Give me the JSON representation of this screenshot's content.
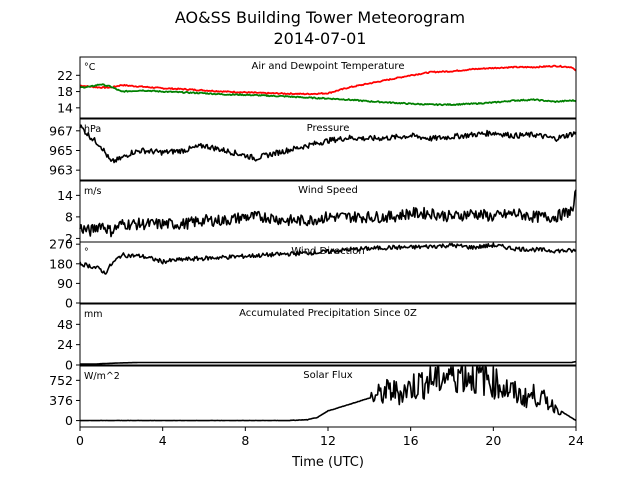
{
  "title": "AO&SS Building Tower Meteorogram",
  "subtitle": "2014-07-01",
  "xlabel": "Time (UTC)",
  "x_ticks": [
    0,
    4,
    8,
    12,
    16,
    20,
    24
  ],
  "chart_data": [
    {
      "type": "line",
      "panel_title": "Air and Dewpoint Temperature",
      "unit": "°C",
      "ylim": [
        11.5,
        26.5
      ],
      "y_ticks": [
        14,
        18,
        22
      ],
      "series": [
        {
          "color": "#ff0000",
          "x": [
            0,
            0.5,
            1,
            1.5,
            2,
            3,
            4,
            5,
            6,
            7,
            8,
            9,
            10,
            11,
            12,
            13,
            14,
            15,
            16,
            17,
            18,
            19,
            20,
            21,
            22,
            23,
            23.8,
            24
          ],
          "y": [
            19.5,
            19.2,
            19,
            19,
            19.6,
            19.2,
            18.8,
            18.6,
            18.3,
            18,
            17.8,
            17.6,
            17.5,
            17.4,
            17.6,
            19,
            20,
            21,
            22,
            22.8,
            23,
            23.5,
            23.8,
            24,
            24,
            24.3,
            24,
            23
          ]
        },
        {
          "color": "#008000",
          "x": [
            0,
            0.5,
            1,
            1.5,
            2,
            3,
            4,
            5,
            6,
            7,
            8,
            9,
            10,
            11,
            12,
            13,
            14,
            15,
            16,
            17,
            18,
            19,
            20,
            21,
            22,
            23,
            23.8,
            24
          ],
          "y": [
            19,
            19.2,
            19.8,
            19.2,
            18,
            18.3,
            18,
            17.8,
            17.6,
            17.3,
            17.2,
            17,
            16.8,
            16.5,
            16.3,
            16,
            15.6,
            15.3,
            15,
            14.8,
            14.8,
            15,
            15.3,
            15.8,
            16,
            15.5,
            15.8,
            15.7
          ]
        }
      ]
    },
    {
      "type": "line",
      "panel_title": "Pressure",
      "unit": "hPa",
      "ylim": [
        962,
        968.2
      ],
      "y_ticks": [
        963,
        965,
        967
      ],
      "series": [
        {
          "color": "#000000",
          "x": [
            0,
            0.3,
            0.6,
            1,
            1.3,
            1.5,
            2,
            2.5,
            3,
            4,
            5,
            6,
            7,
            8,
            8.5,
            9,
            10,
            11,
            12,
            13,
            14,
            15,
            16,
            17,
            18,
            19,
            20,
            21,
            22,
            23,
            24
          ],
          "y": [
            967.5,
            966.8,
            966.2,
            965.5,
            964.5,
            963.8,
            964.2,
            964.8,
            965,
            964.8,
            965,
            965.5,
            965,
            964.5,
            964.2,
            964.5,
            965,
            965.5,
            966,
            966.3,
            966.2,
            966.3,
            966.5,
            966.2,
            966.4,
            966.6,
            966.8,
            966.5,
            966.6,
            966.2,
            966.8
          ]
        }
      ]
    },
    {
      "type": "line",
      "panel_title": "Wind Speed",
      "unit": "m/s",
      "ylim": [
        1,
        18
      ],
      "y_ticks": [
        2,
        8,
        14
      ],
      "series": [
        {
          "color": "#000000",
          "x": [
            0,
            0.5,
            1,
            1.5,
            2,
            3,
            4,
            5,
            6,
            7,
            8,
            9,
            10,
            11,
            12,
            13,
            14,
            15,
            16,
            17,
            18,
            19,
            20,
            21,
            22,
            23,
            23.9,
            24
          ],
          "y": [
            5,
            4,
            6,
            4,
            6,
            6,
            6,
            6,
            7,
            7,
            8,
            8,
            7,
            7,
            8,
            8,
            8,
            8,
            9,
            9,
            8,
            9,
            8,
            9,
            8,
            8,
            10,
            17
          ]
        }
      ]
    },
    {
      "type": "line",
      "panel_title": "Wind Direction",
      "unit": "°",
      "ylim": [
        0,
        280
      ],
      "y_ticks": [
        0,
        90,
        180,
        270
      ],
      "series": [
        {
          "color": "#000000",
          "x": [
            0,
            0.5,
            1,
            1.2,
            1.5,
            2,
            3,
            4,
            5,
            6,
            7,
            8,
            9,
            10,
            11,
            12,
            13,
            14,
            15,
            16,
            17,
            18,
            19,
            20,
            21,
            22,
            23,
            24
          ],
          "y": [
            180,
            170,
            155,
            135,
            175,
            220,
            215,
            190,
            200,
            205,
            210,
            215,
            220,
            225,
            230,
            235,
            245,
            250,
            255,
            255,
            260,
            265,
            255,
            265,
            250,
            245,
            240,
            240
          ]
        }
      ]
    },
    {
      "type": "line",
      "panel_title": "Accumulated Precipitation Since 0Z",
      "unit": "mm",
      "ylim": [
        0,
        72
      ],
      "y_ticks": [
        0,
        24,
        48
      ],
      "series": [
        {
          "color": "#000000",
          "x": [
            0,
            1,
            2,
            3,
            4,
            8,
            12,
            16,
            20,
            23.8,
            24
          ],
          "y": [
            0,
            1.5,
            2.5,
            3,
            3,
            3,
            3,
            3,
            3,
            3,
            4
          ]
        }
      ]
    },
    {
      "type": "line",
      "panel_title": "Solar Flux",
      "unit": "W/m^2",
      "ylim": [
        -120,
        1020
      ],
      "y_ticks": [
        0,
        376,
        752
      ],
      "series": [
        {
          "color": "#000000",
          "x": [
            0,
            4,
            8,
            10,
            11,
            11.5,
            12,
            13,
            14,
            14.5,
            15,
            15.5,
            16,
            16.5,
            17,
            17.5,
            18,
            18.5,
            19,
            19.5,
            20,
            20.5,
            21,
            21.5,
            22,
            22.5,
            23,
            23.5,
            24
          ],
          "y": [
            0,
            0,
            0,
            0,
            15,
            60,
            180,
            300,
            420,
            480,
            560,
            520,
            620,
            700,
            760,
            820,
            880,
            900,
            850,
            820,
            740,
            620,
            520,
            420,
            480,
            380,
            250,
            120,
            0
          ]
        }
      ]
    }
  ]
}
